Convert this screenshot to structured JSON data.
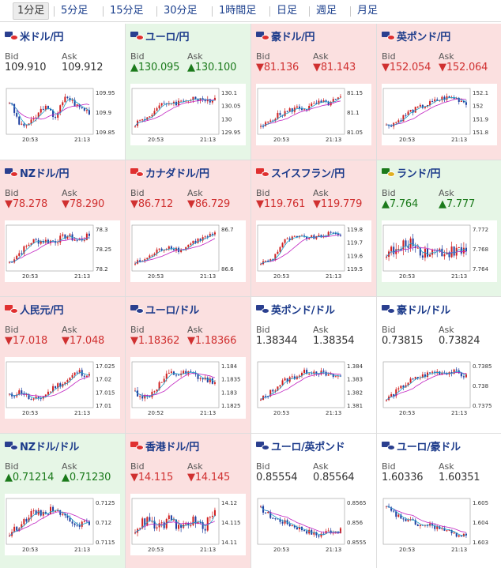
{
  "tabs": [
    {
      "label": "1分足",
      "active": true
    },
    {
      "label": "5分足"
    },
    {
      "label": "15分足"
    },
    {
      "label": "30分足"
    },
    {
      "label": "1時間足"
    },
    {
      "label": "日足"
    },
    {
      "label": "週足"
    },
    {
      "label": "月足"
    }
  ],
  "labels": {
    "bid": "Bid",
    "ask": "Ask"
  },
  "colors": {
    "up_bg": "#e6f6e6",
    "down_bg": "#fbe0e0",
    "up_text": "#1b7a1b",
    "down_text": "#d03030",
    "candle_up": "#d02020",
    "candle_down": "#1f3fa0",
    "ma": "#c020c0",
    "ma_short": "#20a0c8"
  },
  "pairs": [
    {
      "name": "米ドル/円",
      "dir": "none",
      "bid": "109.910",
      "ask": "109.912",
      "flag": [
        "#2a3f8f",
        "#e03030"
      ],
      "ticks": [
        "109.95",
        "109.9",
        "109.85"
      ],
      "times": [
        "20:53",
        "21:13"
      ],
      "trend": [
        2,
        -3,
        -2,
        1,
        -1,
        3,
        1,
        0
      ]
    },
    {
      "name": "ユーロ/円",
      "dir": "up",
      "bid": "130.095",
      "ask": "130.100",
      "flag": [
        "#2a3f8f",
        "#e03030"
      ],
      "ticks": [
        "130.1",
        "130.05",
        "130",
        "129.95"
      ],
      "times": [
        "20:53",
        "21:13"
      ],
      "trend": [
        -2,
        -1,
        1,
        2,
        2,
        3,
        2,
        3
      ]
    },
    {
      "name": "豪ドル/円",
      "dir": "down",
      "bid": "81.136",
      "ask": "81.143",
      "flag": [
        "#2a3f8f",
        "#e03030"
      ],
      "ticks": [
        "81.15",
        "81.1",
        "81.05"
      ],
      "times": [
        "20:53",
        "21:13"
      ],
      "trend": [
        -2,
        0,
        1,
        2,
        2,
        3,
        3,
        4
      ]
    },
    {
      "name": "英ポンド/円",
      "dir": "down",
      "bid": "152.054",
      "ask": "152.064",
      "flag": [
        "#2a3f8f",
        "#e03030"
      ],
      "ticks": [
        "152.1",
        "152",
        "151.9",
        "151.8"
      ],
      "times": [
        "20:53",
        "21:13"
      ],
      "trend": [
        -3,
        -2,
        0,
        1,
        2,
        3,
        3,
        2
      ]
    },
    {
      "name": "NZドル/円",
      "dir": "down",
      "bid": "78.278",
      "ask": "78.290",
      "flag": [
        "#2a3f8f",
        "#e03030"
      ],
      "ticks": [
        "78.3",
        "78.25",
        "78.2"
      ],
      "times": [
        "20:53",
        "21:13"
      ],
      "trend": [
        -2,
        0,
        2,
        2,
        2,
        3,
        2,
        3
      ]
    },
    {
      "name": "カナダドル/円",
      "dir": "down",
      "bid": "86.712",
      "ask": "86.729",
      "flag": [
        "#e03030",
        "#e03030"
      ],
      "ticks": [
        "86.7",
        "86.6"
      ],
      "times": [
        "20:53",
        "21:13"
      ],
      "trend": [
        -3,
        -2,
        0,
        1,
        0,
        2,
        3,
        4
      ]
    },
    {
      "name": "スイスフラン/円",
      "dir": "down",
      "bid": "119.761",
      "ask": "119.779",
      "flag": [
        "#e03030",
        "#e03030"
      ],
      "ticks": [
        "119.8",
        "119.7",
        "119.6",
        "119.5"
      ],
      "times": [
        "20:53",
        "21:13"
      ],
      "trend": [
        -4,
        -3,
        2,
        3,
        3,
        3,
        4,
        4
      ]
    },
    {
      "name": "ランド/円",
      "dir": "up",
      "bid": "7.764",
      "ask": "7.777",
      "flag": [
        "#1b7a1b",
        "#e0b020"
      ],
      "ticks": [
        "7.772",
        "7.768",
        "7.764"
      ],
      "times": [
        "20:53",
        "21:13"
      ],
      "trend": [
        0,
        0,
        1,
        0,
        0,
        0,
        0,
        0
      ]
    },
    {
      "name": "人民元/円",
      "dir": "down",
      "bid": "17.018",
      "ask": "17.048",
      "flag": [
        "#e03030",
        "#e03030"
      ],
      "ticks": [
        "17.025",
        "17.02",
        "17.015",
        "17.01"
      ],
      "times": [
        "20:53",
        "21:13"
      ],
      "trend": [
        -2,
        -1,
        -3,
        -2,
        0,
        1,
        3,
        2
      ]
    },
    {
      "name": "ユーロ/ドル",
      "dir": "down",
      "bid": "1.18362",
      "ask": "1.18366",
      "flag": [
        "#2a3f8f",
        "#2a3f8f"
      ],
      "ticks": [
        "1.184",
        "1.1835",
        "1.183",
        "1.1825"
      ],
      "times": [
        "20:52",
        "21:13"
      ],
      "trend": [
        -1,
        -2,
        0,
        2,
        2,
        2,
        1,
        1
      ]
    },
    {
      "name": "英ポンド/ドル",
      "dir": "none",
      "bid": "1.38344",
      "ask": "1.38354",
      "flag": [
        "#2a3f8f",
        "#2a3f8f"
      ],
      "ticks": [
        "1.384",
        "1.383",
        "1.382",
        "1.381"
      ],
      "times": [
        "20:53",
        "21:13"
      ],
      "trend": [
        -3,
        -1,
        1,
        2,
        3,
        3,
        2,
        2
      ]
    },
    {
      "name": "豪ドル/ドル",
      "dir": "none",
      "bid": "0.73815",
      "ask": "0.73824",
      "flag": [
        "#2a3f8f",
        "#2a3f8f"
      ],
      "ticks": [
        "0.7385",
        "0.738",
        "0.7375"
      ],
      "times": [
        "20:53",
        "21:13"
      ],
      "trend": [
        -3,
        -1,
        1,
        2,
        3,
        3,
        3,
        2
      ]
    },
    {
      "name": "NZドル/ドル",
      "dir": "up",
      "bid": "0.71214",
      "ask": "0.71230",
      "flag": [
        "#2a3f8f",
        "#2a3f8f"
      ],
      "ticks": [
        "0.7125",
        "0.712",
        "0.7115"
      ],
      "times": [
        "20:53",
        "21:13"
      ],
      "trend": [
        -2,
        0,
        2,
        2,
        3,
        1,
        0,
        0
      ]
    },
    {
      "name": "香港ドル/円",
      "dir": "down",
      "bid": "14.115",
      "ask": "14.145",
      "flag": [
        "#e03030",
        "#e03030"
      ],
      "ticks": [
        "14.12",
        "14.115",
        "14.11"
      ],
      "times": [
        "20:53",
        "21:13"
      ],
      "trend": [
        0,
        1,
        0,
        1,
        0,
        1,
        0,
        2
      ]
    },
    {
      "name": "ユーロ/英ポンド",
      "dir": "none",
      "bid": "0.85554",
      "ask": "0.85564",
      "flag": [
        "#2a3f8f",
        "#2a3f8f"
      ],
      "ticks": [
        "0.8565",
        "0.856",
        "0.8555"
      ],
      "times": [
        "20:53",
        "21:13"
      ],
      "trend": [
        3,
        1,
        0,
        -1,
        -2,
        -3,
        -2,
        -2
      ]
    },
    {
      "name": "ユーロ/豪ドル",
      "dir": "none",
      "bid": "1.60336",
      "ask": "1.60351",
      "flag": [
        "#2a3f8f",
        "#2a3f8f"
      ],
      "ticks": [
        "1.605",
        "1.604",
        "1.603"
      ],
      "times": [
        "20:53",
        "21:13"
      ],
      "trend": [
        3,
        1,
        0,
        -1,
        -1,
        -2,
        -3,
        -3
      ]
    }
  ]
}
